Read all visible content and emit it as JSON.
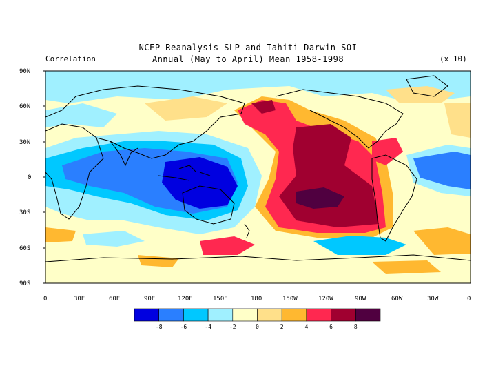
{
  "header": {
    "title_line1": "NCEP Reanalysis SLP and Tahiti-Darwin SOI",
    "title_line2": "Annual (May to April) Mean 1958-1998",
    "left_label": "Correlation",
    "right_label": "(x 10)"
  },
  "axes": {
    "y_ticks": [
      "90N",
      "60N",
      "30N",
      "0",
      "30S",
      "60S",
      "90S"
    ],
    "x_ticks": [
      "0",
      "30E",
      "60E",
      "90E",
      "120E",
      "150E",
      "180",
      "150W",
      "120W",
      "90W",
      "60W",
      "30W",
      "0"
    ]
  },
  "colorbar": {
    "labels": [
      "-8",
      "-6",
      "-4",
      "-2",
      "0",
      "2",
      "4",
      "6",
      "8"
    ],
    "colors": [
      "#0000e0",
      "#2a7fff",
      "#00c8ff",
      "#a0f0ff",
      "#ffffc8",
      "#ffe08a",
      "#ffb830",
      "#ff2850",
      "#a00030",
      "#500040"
    ]
  },
  "palette": {
    "deep_blue": "#0000e0",
    "blue": "#2a7fff",
    "cyan": "#00c8ff",
    "light_cyan": "#a0f0ff",
    "cream": "#ffffc8",
    "light_yellow": "#ffe08a",
    "orange": "#ffb830",
    "red": "#ff2850",
    "dark_red": "#a00030",
    "purple": "#500040"
  }
}
